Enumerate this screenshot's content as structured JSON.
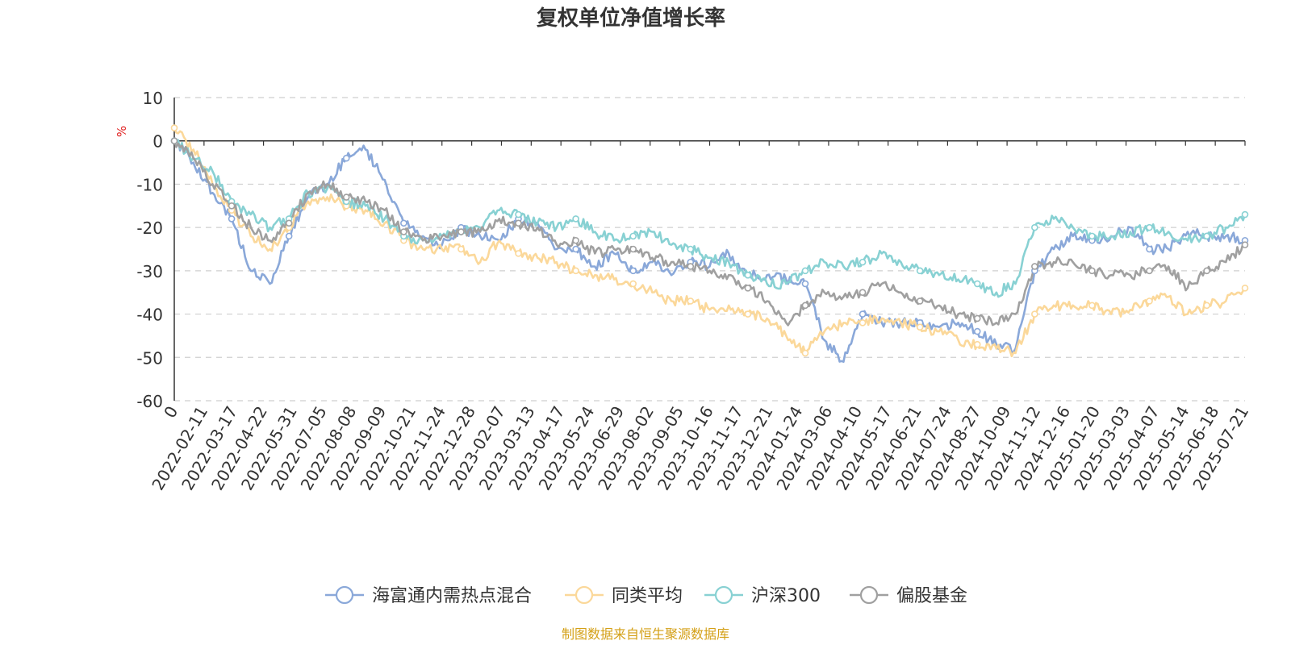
{
  "chart_data": {
    "type": "line",
    "title": "复权单位净值增长率",
    "ylabel": "%",
    "ylim": [
      -60,
      10
    ],
    "yticks": [
      10,
      0,
      -10,
      -20,
      -30,
      -40,
      -50,
      -60
    ],
    "grid": true,
    "legend_position": "bottom",
    "x_tick_labels": [
      "0",
      "2022-02-11",
      "2022-03-17",
      "2022-04-22",
      "2022-05-31",
      "2022-07-05",
      "2022-08-08",
      "2022-09-09",
      "2022-10-21",
      "2022-11-24",
      "2022-12-28",
      "2023-02-07",
      "2023-03-13",
      "2023-04-17",
      "2023-05-24",
      "2023-06-29",
      "2023-08-02",
      "2023-09-05",
      "2023-10-16",
      "2023-11-17",
      "2023-12-21",
      "2024-01-24",
      "2024-03-06",
      "2024-04-10",
      "2024-05-17",
      "2024-06-21",
      "2024-07-24",
      "2024-08-27",
      "2024-10-09",
      "2024-11-12",
      "2024-12-16",
      "2025-01-20",
      "2025-03-03",
      "2025-04-07",
      "2025-05-14",
      "2025-06-18",
      "2025-07-21"
    ],
    "series": [
      {
        "name": "海富通内需热点混合",
        "color": "#8aa8d9",
        "values": [
          0,
          -5,
          -12,
          -18,
          -30,
          -33,
          -22,
          -13,
          -10,
          -4,
          -2,
          -9,
          -19,
          -22,
          -24,
          -20,
          -22,
          -23,
          -18,
          -19,
          -25,
          -25,
          -29,
          -26,
          -30,
          -28,
          -31,
          -28,
          -29,
          -26,
          -31,
          -31,
          -32,
          -33,
          -46,
          -51,
          -40,
          -42,
          -42,
          -42,
          -43,
          -42,
          -44,
          -47,
          -48,
          -30,
          -25,
          -22,
          -23,
          -22,
          -20,
          -25,
          -25,
          -21,
          -22,
          -22,
          -23
        ]
      },
      {
        "name": "同类平均",
        "color": "#fbd89a",
        "values": [
          3,
          -2,
          -10,
          -16,
          -22,
          -25,
          -20,
          -14,
          -13,
          -15,
          -16,
          -19,
          -23,
          -25,
          -25,
          -25,
          -28,
          -23,
          -26,
          -27,
          -28,
          -30,
          -31,
          -32,
          -33,
          -35,
          -37,
          -37,
          -39,
          -38,
          -40,
          -41,
          -45,
          -49,
          -44,
          -42,
          -42,
          -41,
          -42,
          -43,
          -44,
          -46,
          -47,
          -48,
          -49,
          -40,
          -38,
          -38,
          -38,
          -40,
          -39,
          -37,
          -36,
          -40,
          -38,
          -37,
          -34
        ]
      },
      {
        "name": "沪深300",
        "color": "#88d1d3",
        "values": [
          0,
          -4,
          -7,
          -14,
          -17,
          -20,
          -18,
          -12,
          -11,
          -14,
          -15,
          -18,
          -22,
          -23,
          -22,
          -21,
          -20,
          -16,
          -17,
          -19,
          -20,
          -18,
          -21,
          -23,
          -22,
          -21,
          -24,
          -25,
          -27,
          -28,
          -31,
          -33,
          -33,
          -30,
          -28,
          -29,
          -28,
          -26,
          -28,
          -30,
          -31,
          -32,
          -33,
          -35,
          -33,
          -20,
          -18,
          -20,
          -22,
          -22,
          -21,
          -20,
          -21,
          -23,
          -22,
          -20,
          -17
        ]
      },
      {
        "name": "偏股基金",
        "color": "#a0a0a0",
        "values": [
          0,
          -4,
          -10,
          -15,
          -20,
          -23,
          -19,
          -12,
          -10,
          -13,
          -14,
          -16,
          -21,
          -23,
          -22,
          -21,
          -21,
          -18,
          -19,
          -20,
          -24,
          -23,
          -26,
          -25,
          -25,
          -27,
          -28,
          -29,
          -30,
          -31,
          -34,
          -37,
          -42,
          -38,
          -35,
          -36,
          -35,
          -33,
          -35,
          -37,
          -38,
          -40,
          -41,
          -42,
          -40,
          -29,
          -28,
          -28,
          -30,
          -31,
          -31,
          -30,
          -29,
          -34,
          -30,
          -28,
          -24
        ]
      }
    ]
  },
  "footer": {
    "source_note": "制图数据来自恒生聚源数据库"
  }
}
